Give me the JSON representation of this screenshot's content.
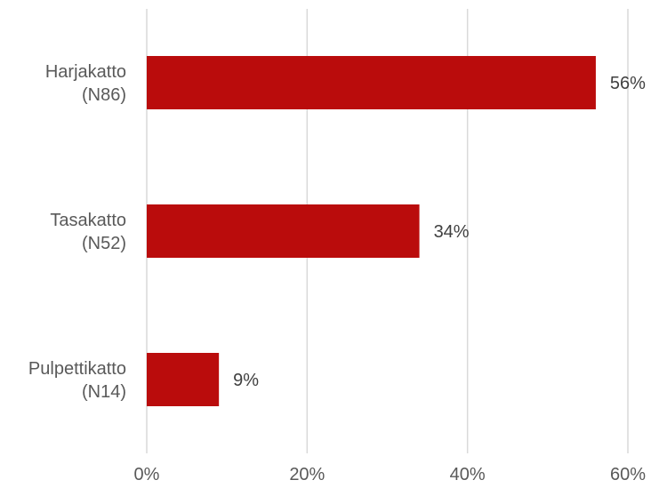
{
  "chart_data": {
    "type": "bar",
    "orientation": "horizontal",
    "categories": [
      [
        "Harjakatto",
        "(N86)"
      ],
      [
        "Tasakatto",
        "(N52)"
      ],
      [
        "Pulpettikatto",
        "(N14)"
      ]
    ],
    "values": [
      56,
      34,
      9
    ],
    "data_labels": [
      "56%",
      "34%",
      "9%"
    ],
    "xlim": [
      0,
      60
    ],
    "xticks": [
      0,
      20,
      40,
      60
    ],
    "xtick_labels": [
      "0%",
      "20%",
      "40%",
      "60%"
    ],
    "grid": "vertical",
    "legend": "none",
    "bar_color": "#BA0C0C",
    "grid_color": "#D9D9D9"
  }
}
